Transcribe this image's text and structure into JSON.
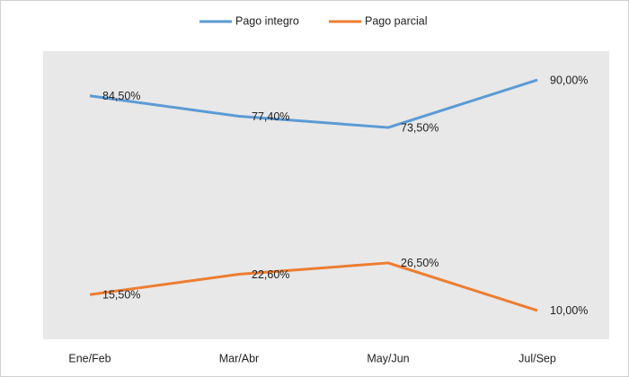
{
  "chart_data": {
    "type": "line",
    "categories": [
      "Ene/Feb",
      "Mar/Abr",
      "May/Jun",
      "Jul/Sep"
    ],
    "series": [
      {
        "name": "Pago integro",
        "color": "#5b9bd5",
        "values": [
          84.5,
          77.4,
          73.5,
          90
        ],
        "value_labels": [
          "84,50%",
          "77,40%",
          "73,50%",
          "90,00%"
        ]
      },
      {
        "name": "Pago parcial",
        "color": "#ed7d31",
        "values": [
          15.5,
          22.6,
          26.5,
          10
        ],
        "value_labels": [
          "15,50%",
          "22,60%",
          "26,50%",
          "10,00%"
        ]
      }
    ],
    "ylim": [
      0,
      100
    ],
    "legend": "top"
  }
}
